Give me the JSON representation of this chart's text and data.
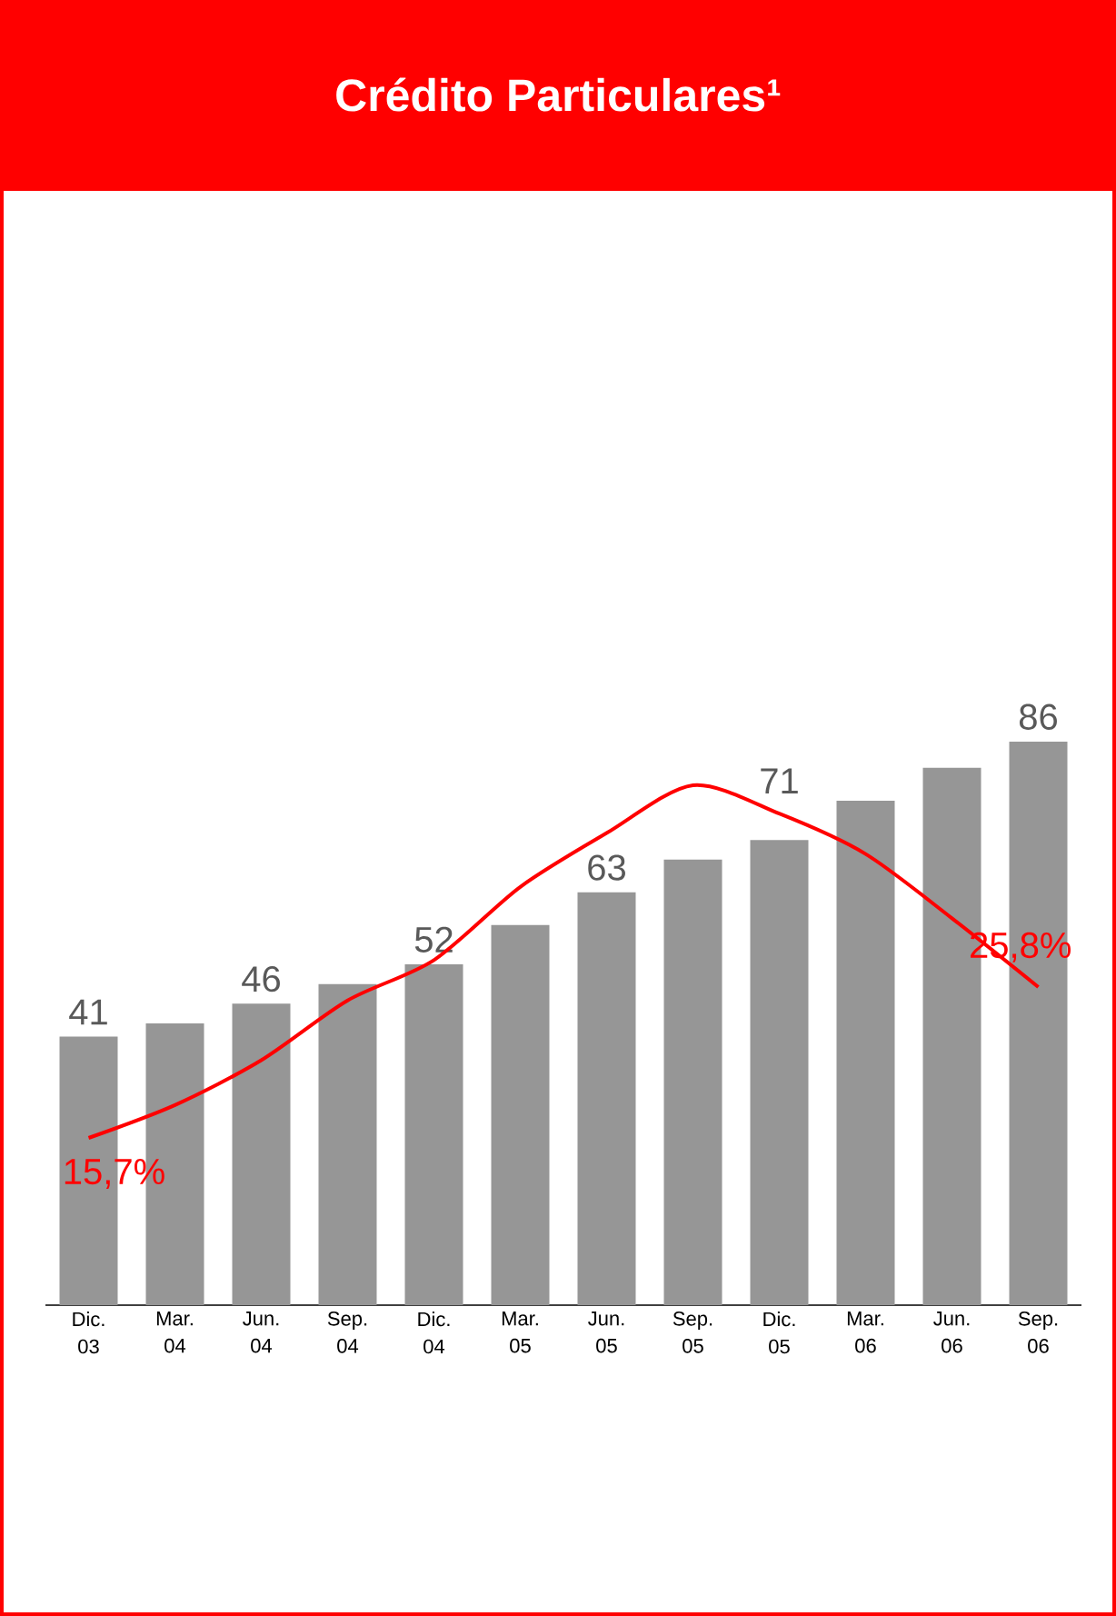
{
  "chart_data": {
    "type": "bar",
    "title": "Crédito Particulares¹",
    "categories": [
      "Dic. 03",
      "Mar. 04",
      "Jun. 04",
      "Sep. 04",
      "Dic. 04",
      "Mar. 05",
      "Jun. 05",
      "Sep. 05",
      "Dic. 05",
      "Mar. 06",
      "Jun. 06",
      "Sep. 06"
    ],
    "series": [
      {
        "color": "#969696",
        "values": [
          41,
          43,
          46,
          49,
          52,
          58,
          63,
          68,
          71,
          77,
          82,
          86
        ],
        "value_labels": [
          "41",
          null,
          "46",
          null,
          "52",
          null,
          "63",
          null,
          "71",
          null,
          null,
          "86"
        ]
      },
      {
        "type": "line",
        "axis": "y2",
        "color": "#ff0000",
        "values": [
          15.7,
          17.9,
          20.9,
          24.9,
          27.6,
          32.5,
          36.1,
          39.3,
          37.4,
          34.7,
          30.4,
          25.8
        ],
        "value_labels": [
          "15,7%",
          null,
          null,
          null,
          null,
          null,
          null,
          null,
          null,
          null,
          null,
          "25,8%"
        ]
      }
    ]
  }
}
